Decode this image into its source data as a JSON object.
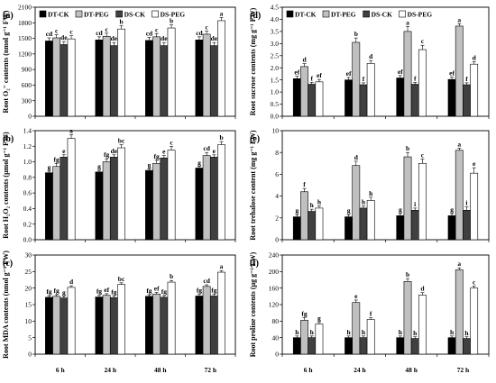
{
  "colors": {
    "DT-CK": "#000000",
    "DT-PEG": "#c0c0c0",
    "DS-CK": "#404040",
    "DS-PEG": "#ffffff"
  },
  "chart_data": [
    {
      "type": "bar",
      "panel": "(a)",
      "ylabel": "Root O₂⁻ contents (nmol g⁻¹ FW)",
      "categories": [
        "6 h",
        "24 h",
        "48 h",
        "72 h"
      ],
      "ylim": [
        0,
        2100
      ],
      "yticks": [
        0,
        300,
        600,
        900,
        1200,
        1500,
        1800,
        2100
      ],
      "legend": "top-left",
      "series": [
        {
          "name": "DT-CK",
          "values": [
            1450,
            1470,
            1460,
            1470
          ],
          "errors": [
            60,
            60,
            60,
            60
          ],
          "letters": [
            "cd",
            "cd",
            "cd",
            "cd"
          ]
        },
        {
          "name": "DT-PEG",
          "values": [
            1510,
            1540,
            1530,
            1580
          ],
          "errors": [
            60,
            60,
            60,
            60
          ],
          "letters": [
            "c",
            "c",
            "c",
            "c"
          ]
        },
        {
          "name": "DS-CK",
          "values": [
            1380,
            1360,
            1360,
            1360
          ],
          "errors": [
            60,
            60,
            60,
            60
          ],
          "letters": [
            "de",
            "de",
            "de",
            "de"
          ]
        },
        {
          "name": "DS-PEG",
          "values": [
            1490,
            1680,
            1700,
            1840
          ],
          "errors": [
            60,
            60,
            60,
            60
          ],
          "letters": [
            "c",
            "b",
            "b",
            "a"
          ]
        }
      ]
    },
    {
      "type": "bar",
      "panel": "(b)",
      "ylabel": "Root H₂O₂ contents (μmol g⁻¹ FW)",
      "categories": [
        "6 h",
        "24 h",
        "48 h",
        "72 h"
      ],
      "ylim": [
        0,
        1.4
      ],
      "yticks": [
        0.0,
        0.2,
        0.4,
        0.6,
        0.8,
        1.0,
        1.2,
        1.4
      ],
      "tickDigits": 1,
      "series": [
        {
          "name": "DT-CK",
          "values": [
            0.86,
            0.87,
            0.89,
            0.92
          ],
          "errors": [
            0.02,
            0.02,
            0.02,
            0.02
          ],
          "letters": [
            "g",
            "g",
            "g",
            "g"
          ]
        },
        {
          "name": "DT-PEG",
          "values": [
            0.94,
            1.0,
            0.98,
            1.08
          ],
          "errors": [
            0.04,
            0.04,
            0.04,
            0.04
          ],
          "letters": [
            "fg",
            "fg",
            "fg",
            "cd"
          ]
        },
        {
          "name": "DS-CK",
          "values": [
            1.06,
            1.06,
            1.05,
            1.06
          ],
          "errors": [
            0.03,
            0.03,
            0.03,
            0.03
          ],
          "letters": [
            "e",
            "de",
            "e",
            "e"
          ]
        },
        {
          "name": "DS-PEG",
          "values": [
            1.3,
            1.18,
            1.15,
            1.22
          ],
          "errors": [
            0.05,
            0.04,
            0.05,
            0.04
          ],
          "letters": [
            "a",
            "bc",
            "c",
            "b"
          ]
        }
      ]
    },
    {
      "type": "bar",
      "panel": "(c)",
      "ylabel": "Root MDA contents (nmol g⁻¹ FW)",
      "categories": [
        "6 h",
        "24 h",
        "48 h",
        "72 h"
      ],
      "ylim": [
        0,
        30
      ],
      "yticks": [
        0,
        5,
        10,
        15,
        20,
        25,
        30
      ],
      "series": [
        {
          "name": "DT-CK",
          "values": [
            17.2,
            17.3,
            17.5,
            17.6
          ],
          "errors": [
            0.5,
            0.5,
            0.5,
            0.5
          ],
          "letters": [
            "fg",
            "fg",
            "fg",
            "fg"
          ]
        },
        {
          "name": "DT-PEG",
          "values": [
            17.5,
            17.8,
            18.2,
            20.5
          ],
          "errors": [
            0.5,
            0.5,
            0.5,
            0.5
          ],
          "letters": [
            "fg",
            "ef",
            "ef",
            "cd"
          ]
        },
        {
          "name": "DS-CK",
          "values": [
            17.0,
            17.1,
            17.2,
            17.6
          ],
          "errors": [
            0.5,
            0.5,
            0.5,
            0.5
          ],
          "letters": [
            "g",
            "fg",
            "fg",
            "fg"
          ]
        },
        {
          "name": "DS-PEG",
          "values": [
            20.2,
            21.1,
            21.8,
            24.8
          ],
          "errors": [
            0.5,
            0.5,
            0.5,
            0.5
          ],
          "letters": [
            "d",
            "bc",
            "b",
            "a"
          ]
        }
      ]
    },
    {
      "type": "bar",
      "panel": "(d)",
      "ylabel": "Root sucrose contents (mg g⁻¹ FW)",
      "categories": [
        "6 h",
        "24 h",
        "48 h",
        "72 h"
      ],
      "ylim": [
        0,
        4.5
      ],
      "yticks": [
        0.0,
        0.5,
        1.0,
        1.5,
        2.0,
        2.5,
        3.0,
        3.5,
        4.0,
        4.5
      ],
      "tickDigits": 1,
      "legend": "top-left",
      "series": [
        {
          "name": "DT-CK",
          "values": [
            1.55,
            1.5,
            1.58,
            1.52
          ],
          "errors": [
            0.1,
            0.1,
            0.1,
            0.1
          ],
          "letters": [
            "ef",
            "ef",
            "ef",
            "ef"
          ]
        },
        {
          "name": "DT-PEG",
          "values": [
            2.05,
            3.05,
            3.5,
            3.72
          ],
          "errors": [
            0.12,
            0.18,
            0.2,
            0.1
          ],
          "letters": [
            "d",
            "b",
            "a",
            "a"
          ]
        },
        {
          "name": "DS-CK",
          "values": [
            1.32,
            1.3,
            1.32,
            1.3
          ],
          "errors": [
            0.08,
            0.08,
            0.08,
            0.08
          ],
          "letters": [
            "f",
            "f",
            "f",
            "f"
          ]
        },
        {
          "name": "DS-PEG",
          "values": [
            1.42,
            2.18,
            2.75,
            2.15
          ],
          "errors": [
            0.1,
            0.12,
            0.18,
            0.1
          ],
          "letters": [
            "ef",
            "d",
            "c",
            "d"
          ]
        }
      ]
    },
    {
      "type": "bar",
      "panel": "(e)",
      "ylabel": "Root trehalose content (mg g⁻¹ FW)",
      "categories": [
        "6 h",
        "24 h",
        "48 h",
        "72 h"
      ],
      "ylim": [
        0,
        10
      ],
      "yticks": [
        0,
        2,
        4,
        6,
        8,
        10
      ],
      "series": [
        {
          "name": "DT-CK",
          "values": [
            2.1,
            2.1,
            2.2,
            2.2
          ],
          "errors": [
            0.2,
            0.2,
            0.2,
            0.2
          ],
          "letters": [
            "g",
            "g",
            "g",
            "g"
          ]
        },
        {
          "name": "DT-PEG",
          "values": [
            4.4,
            6.8,
            7.6,
            8.2
          ],
          "errors": [
            0.3,
            0.4,
            0.4,
            0.2
          ],
          "letters": [
            "f",
            "d",
            "b",
            "a"
          ]
        },
        {
          "name": "DS-CK",
          "values": [
            2.6,
            2.9,
            2.7,
            2.7
          ],
          "errors": [
            0.2,
            0.2,
            0.2,
            0.3
          ],
          "letters": [
            "h",
            "h",
            "i",
            "i"
          ]
        },
        {
          "name": "DS-PEG",
          "values": [
            2.9,
            3.6,
            7.0,
            6.1
          ],
          "errors": [
            0.2,
            0.3,
            0.4,
            0.5
          ],
          "letters": [
            "h",
            "h",
            "c",
            "e"
          ]
        }
      ]
    },
    {
      "type": "bar",
      "panel": "(f)",
      "ylabel": "Root proline contents (μg g⁻¹ FW)",
      "categories": [
        "6 h",
        "24 h",
        "48 h",
        "72 h"
      ],
      "ylim": [
        0,
        240
      ],
      "yticks": [
        0,
        40,
        80,
        120,
        160,
        200,
        240
      ],
      "series": [
        {
          "name": "DT-CK",
          "values": [
            40,
            40,
            40,
            40
          ],
          "errors": [
            4,
            4,
            4,
            4
          ],
          "letters": [
            "h",
            "h",
            "h",
            "h"
          ]
        },
        {
          "name": "DT-PEG",
          "values": [
            82,
            125,
            176,
            204
          ],
          "errors": [
            6,
            6,
            7,
            5
          ],
          "letters": [
            "fg",
            "e",
            "b",
            "a"
          ]
        },
        {
          "name": "DS-CK",
          "values": [
            40,
            40,
            38,
            38
          ],
          "errors": [
            4,
            4,
            4,
            4
          ],
          "letters": [
            "h",
            "h",
            "h",
            "h"
          ]
        },
        {
          "name": "DS-PEG",
          "values": [
            73,
            84,
            143,
            160
          ],
          "errors": [
            4,
            4,
            6,
            5
          ],
          "letters": [
            "g",
            "f",
            "d",
            "c"
          ]
        }
      ]
    }
  ]
}
